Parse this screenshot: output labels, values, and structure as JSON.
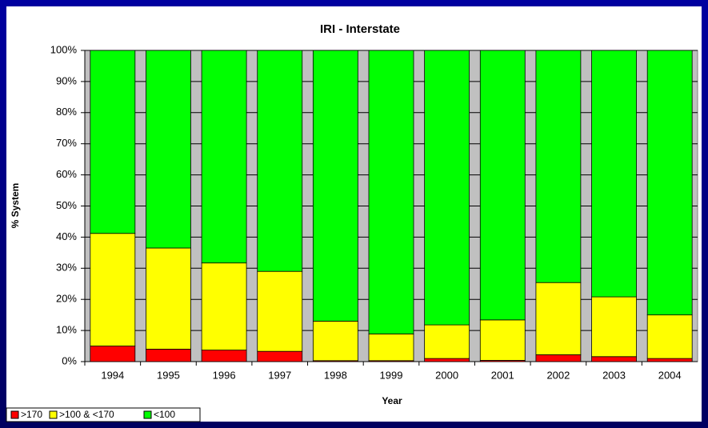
{
  "chart_data": {
    "type": "stacked_bar",
    "title": "IRI - Interstate",
    "x_label": "Year",
    "y_label": "% System",
    "categories": [
      "1994",
      "1995",
      "1996",
      "1997",
      "1998",
      "1999",
      "2000",
      "2001",
      "2002",
      "2003",
      "2004"
    ],
    "series": [
      {
        "name": ">170",
        "color": "#ff0000",
        "values": [
          5,
          4,
          3.7,
          3.3,
          0.3,
          0.3,
          1,
          0.4,
          2.2,
          1.6,
          1
        ]
      },
      {
        "name": ">100 & <170",
        "color": "#ffff00",
        "values": [
          36.2,
          32.5,
          28,
          25.7,
          12.7,
          8.6,
          10.8,
          13,
          23.2,
          19.2,
          14
        ]
      },
      {
        "name": "<100",
        "color": "#00ff00",
        "values": [
          58.8,
          63.5,
          68.3,
          71,
          87,
          91.1,
          88.2,
          86.6,
          74.6,
          79.2,
          85
        ]
      }
    ],
    "ylim": [
      0,
      100
    ],
    "yticks": [
      {
        "value": 0,
        "label": "0%"
      },
      {
        "value": 10,
        "label": "10%"
      },
      {
        "value": 20,
        "label": "20%"
      },
      {
        "value": 30,
        "label": "30%"
      },
      {
        "value": 40,
        "label": "40%"
      },
      {
        "value": 50,
        "label": "50%"
      },
      {
        "value": 60,
        "label": "60%"
      },
      {
        "value": 70,
        "label": "70%"
      },
      {
        "value": 80,
        "label": "80%"
      },
      {
        "value": 90,
        "label": "90%"
      },
      {
        "value": 100,
        "label": "100%"
      }
    ],
    "grid": true,
    "legend": "bottom-left"
  }
}
